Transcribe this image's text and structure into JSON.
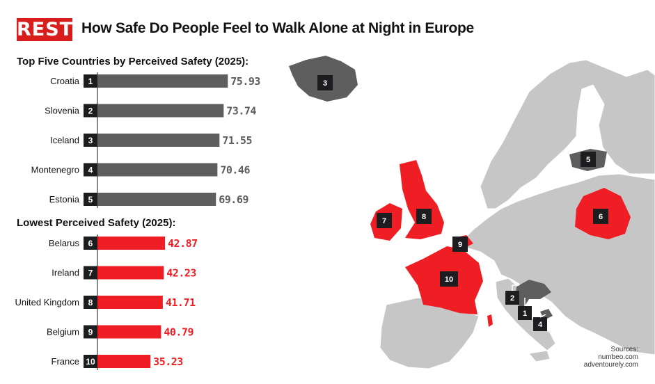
{
  "logo": "REST",
  "title": "How Safe Do People Feel to Walk Alone at Night in Europe",
  "colors": {
    "top": "#5e5e5e",
    "bottom": "#ef1e24",
    "map_base": "#c6c6c6",
    "rank_box": "#1d1d20"
  },
  "sources": {
    "label": "Sources:",
    "lines": [
      "numbeo.com",
      "adventourely.com"
    ]
  },
  "chart_data": [
    {
      "type": "bar",
      "orientation": "horizontal",
      "title": "Top Five Countries by Perceived Safety (2025):",
      "categories": [
        "Croatia",
        "Slovenia",
        "Iceland",
        "Montenegro",
        "Estonia"
      ],
      "ranks": [
        "1",
        "2",
        "3",
        "4",
        "5"
      ],
      "values": [
        75.93,
        73.74,
        71.55,
        70.46,
        69.69
      ]
    },
    {
      "type": "bar",
      "orientation": "horizontal",
      "title": "Lowest Perceived Safety (2025):",
      "categories": [
        "Belarus",
        "Ireland",
        "United Kingdom",
        "Belgium",
        "France"
      ],
      "ranks": [
        "6",
        "7",
        "8",
        "9",
        "10"
      ],
      "values": [
        42.87,
        42.23,
        41.71,
        40.79,
        35.23
      ]
    }
  ],
  "map_labels": [
    "3",
    "5",
    "6",
    "7",
    "8",
    "9",
    "10",
    "2",
    "1",
    "4"
  ]
}
